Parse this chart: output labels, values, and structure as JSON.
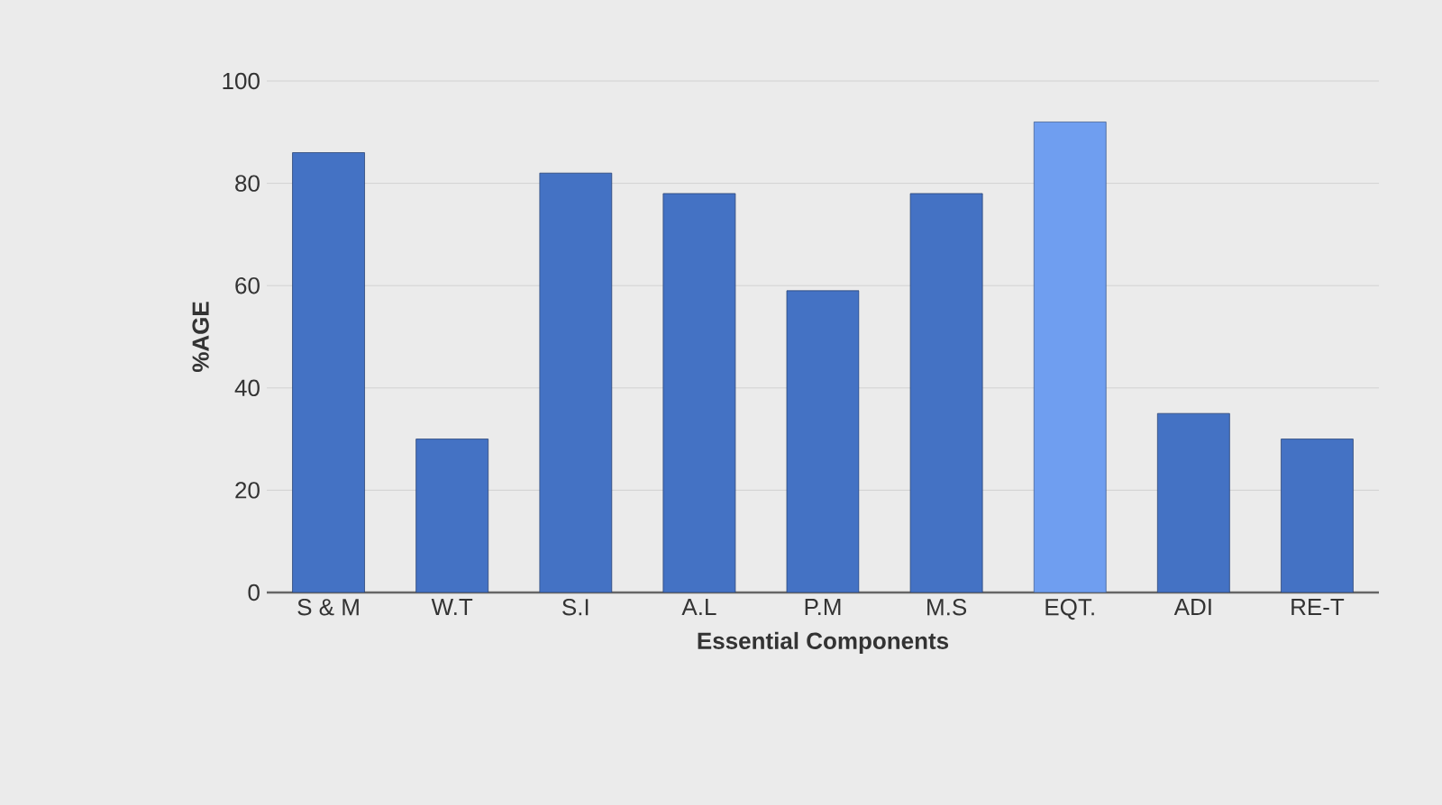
{
  "chart_data": {
    "type": "bar",
    "xlabel": "Essential Components",
    "ylabel": "%AGE",
    "categories": [
      "S & M",
      "W.T",
      "S.I",
      "A.L",
      "P.M",
      "M.S",
      "EQT.",
      "ADI",
      "RE-T"
    ],
    "values": [
      86,
      30,
      82,
      78,
      59,
      78,
      92,
      35,
      30
    ],
    "colors": [
      "#4472c4",
      "#4472c4",
      "#4472c4",
      "#4472c4",
      "#4472c4",
      "#4472c4",
      "#6f9ef0",
      "#4472c4",
      "#4472c4"
    ],
    "ylim": [
      0,
      100
    ],
    "yticks": [
      0,
      20,
      40,
      60,
      80,
      100
    ],
    "grid": "y"
  }
}
